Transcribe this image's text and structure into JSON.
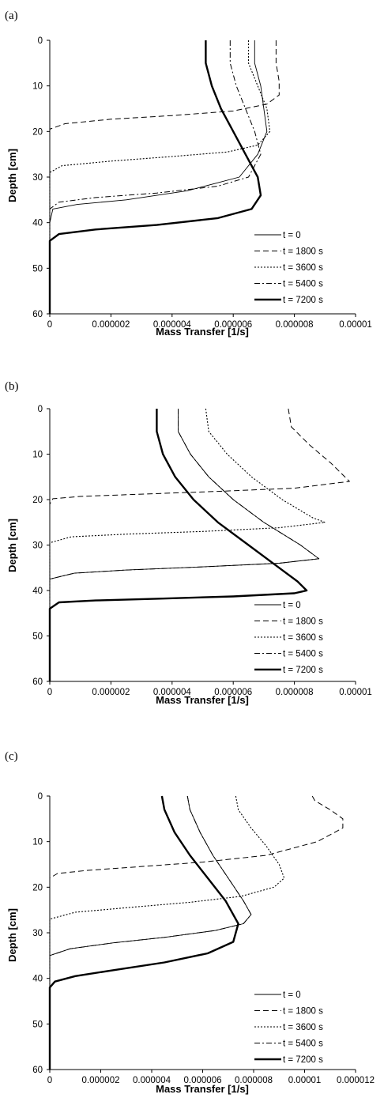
{
  "chart_data": [
    {
      "type": "line",
      "panel_label": "(a)",
      "xlabel": "Mass Transfer [1/s]",
      "ylabel": "Depth [cm]",
      "xlim": [
        0,
        1e-05
      ],
      "ylim": [
        0,
        60
      ],
      "y_inverted": true,
      "x_tick_values": [
        0,
        2e-06,
        4e-06,
        6e-06,
        8e-06,
        1e-05
      ],
      "x_tick_labels": [
        "0",
        "0.000002",
        "0.000004",
        "0.000006",
        "0.000008",
        "0.00001"
      ],
      "y_tick_values": [
        0,
        10,
        20,
        30,
        40,
        50,
        60
      ],
      "y_tick_labels": [
        "0",
        "10",
        "20",
        "30",
        "40",
        "50",
        "60"
      ],
      "grid": false,
      "legend_position": "bottom-right",
      "series": [
        {
          "name": "t = 0",
          "style": "thin-solid",
          "x": [
            6.7e-06,
            6.7e-06,
            6.9e-06,
            7e-06,
            7.1e-06,
            6.8e-06,
            6.2e-06,
            4.5e-06,
            2.5e-06,
            9e-07,
            1e-07,
            0.0,
            0.0
          ],
          "y": [
            0,
            5,
            10,
            15,
            20,
            25,
            30,
            33,
            35,
            36,
            37,
            40,
            60
          ]
        },
        {
          "name": "t = 1800 s",
          "style": "dashed",
          "x": [
            7.4e-06,
            7.4e-06,
            7.5e-06,
            7.5e-06,
            7.1e-06,
            6e-06,
            4e-06,
            2e-06,
            5e-07,
            0.0,
            0.0
          ],
          "y": [
            0,
            5,
            9,
            12,
            14,
            15.5,
            16.5,
            17.3,
            18.3,
            19.5,
            60
          ]
        },
        {
          "name": "t = 3600 s",
          "style": "dotted",
          "x": [
            6.5e-06,
            6.5e-06,
            6.8e-06,
            7.1e-06,
            7.2e-06,
            6.8e-06,
            5.8e-06,
            4e-06,
            2e-06,
            4e-07,
            0.0,
            0.0
          ],
          "y": [
            0,
            5,
            10,
            15,
            20,
            23,
            24.5,
            25.5,
            26.5,
            27.5,
            29,
            60
          ]
        },
        {
          "name": "t = 5400 s",
          "style": "dash-dot",
          "x": [
            5.9e-06,
            5.9e-06,
            6.1e-06,
            6.4e-06,
            6.7e-06,
            6.9e-06,
            6.5e-06,
            5.5e-06,
            3.5e-06,
            1.5e-06,
            3e-07,
            0.0,
            0.0
          ],
          "y": [
            0,
            5,
            10,
            15,
            20,
            25,
            30,
            32,
            33.5,
            34.5,
            35.5,
            37,
            60
          ]
        },
        {
          "name": "t = 7200 s",
          "style": "thick-solid",
          "x": [
            5.1e-06,
            5.1e-06,
            5.3e-06,
            5.6e-06,
            6e-06,
            6.4e-06,
            6.8e-06,
            6.9e-06,
            6.6e-06,
            5.5e-06,
            3.5e-06,
            1.5e-06,
            3e-07,
            0.0,
            0.0
          ],
          "y": [
            0,
            5,
            10,
            15,
            20,
            25,
            30,
            34,
            37,
            39,
            40.5,
            41.5,
            42.5,
            44,
            60
          ]
        }
      ]
    },
    {
      "type": "line",
      "panel_label": "(b)",
      "xlabel": "Mass Transfer [1/s]",
      "ylabel": "Depth [cm]",
      "xlim": [
        0,
        1e-05
      ],
      "ylim": [
        0,
        60
      ],
      "y_inverted": true,
      "x_tick_values": [
        0,
        2e-06,
        4e-06,
        6e-06,
        8e-06,
        1e-05
      ],
      "x_tick_labels": [
        "0",
        "0.000002",
        "0.000004",
        "0.000006",
        "0.000008",
        "0.00001"
      ],
      "y_tick_values": [
        0,
        10,
        20,
        30,
        40,
        50,
        60
      ],
      "y_tick_labels": [
        "0",
        "10",
        "20",
        "30",
        "40",
        "50",
        "60"
      ],
      "grid": false,
      "legend_position": "bottom-right",
      "series": [
        {
          "name": "t = 0",
          "style": "thin-solid",
          "x": [
            4.2e-06,
            4.2e-06,
            4.6e-06,
            5.2e-06,
            6e-06,
            7e-06,
            8.2e-06,
            8.8e-06,
            7.5e-06,
            5e-06,
            2.5e-06,
            8e-07,
            0.0,
            0.0
          ],
          "y": [
            0,
            5,
            10,
            15,
            20,
            25,
            30,
            33,
            34,
            34.8,
            35.5,
            36.2,
            37.5,
            60
          ]
        },
        {
          "name": "t = 1800 s",
          "style": "dashed",
          "x": [
            7.8e-06,
            7.9e-06,
            8.5e-06,
            9.2e-06,
            9.8e-06,
            8e-06,
            5.5e-06,
            3e-06,
            1e-06,
            1e-07,
            0.0,
            0.0
          ],
          "y": [
            0,
            4,
            8,
            12,
            16,
            17.5,
            18.2,
            18.8,
            19.3,
            19.8,
            21,
            60
          ]
        },
        {
          "name": "t = 3600 s",
          "style": "dotted",
          "x": [
            5.1e-06,
            5.2e-06,
            5.8e-06,
            6.6e-06,
            7.6e-06,
            8.6e-06,
            9e-06,
            7.5e-06,
            5e-06,
            2.5e-06,
            7e-07,
            0.0,
            0.0
          ],
          "y": [
            0,
            5,
            10,
            15,
            20,
            24,
            25,
            26.2,
            27,
            27.6,
            28.2,
            29.5,
            60
          ]
        },
        {
          "name": "t = 5400 s",
          "style": "dash-dot",
          "x": [
            4.2e-06,
            4.2e-06,
            4.6e-06,
            5.2e-06,
            6e-06,
            7e-06,
            8.2e-06,
            8.8e-06,
            7.5e-06,
            5e-06,
            2.5e-06,
            8e-07,
            0.0,
            0.0
          ],
          "y": [
            0,
            5,
            10,
            15,
            20,
            25,
            30,
            33,
            34,
            34.8,
            35.5,
            36.2,
            37.5,
            60
          ]
        },
        {
          "name": "t = 7200 s",
          "style": "thick-solid",
          "x": [
            3.5e-06,
            3.5e-06,
            3.7e-06,
            4.1e-06,
            4.7e-06,
            5.5e-06,
            6.5e-06,
            7.5e-06,
            8.1e-06,
            8.4e-06,
            8e-06,
            6e-06,
            3.5e-06,
            1.5e-06,
            3e-07,
            0.0,
            0.0
          ],
          "y": [
            0,
            5,
            10,
            15,
            20,
            25,
            30,
            35,
            38,
            40,
            40.6,
            41.3,
            41.8,
            42.2,
            42.6,
            44,
            60
          ]
        }
      ]
    },
    {
      "type": "line",
      "panel_label": "(c)",
      "xlabel": "Mass Transfer [1/s]",
      "ylabel": "Depth [cm]",
      "xlim": [
        0,
        1.2e-05
      ],
      "ylim": [
        0,
        60
      ],
      "y_inverted": true,
      "x_tick_values": [
        0,
        2e-06,
        4e-06,
        6e-06,
        8e-06,
        1e-05,
        1.2e-05
      ],
      "x_tick_labels": [
        "0",
        "0.000002",
        "0.000004",
        "0.000006",
        "0.000008",
        "0.00001",
        "0.000012"
      ],
      "y_tick_values": [
        0,
        10,
        20,
        30,
        40,
        50,
        60
      ],
      "y_tick_labels": [
        "0",
        "10",
        "20",
        "30",
        "40",
        "50",
        "60"
      ],
      "grid": false,
      "legend_position": "bottom-right",
      "series": [
        {
          "name": "t = 0",
          "style": "thin-solid",
          "x": [
            5.4e-06,
            5.5e-06,
            5.9e-06,
            6.4e-06,
            7e-06,
            7.6e-06,
            7.9e-06,
            7.6e-06,
            6.5e-06,
            4.5e-06,
            2.5e-06,
            8e-07,
            0.0,
            0.0
          ],
          "y": [
            0,
            3,
            8,
            13,
            18,
            23,
            26,
            28,
            29.5,
            31,
            32.2,
            33.5,
            35,
            60
          ]
        },
        {
          "name": "t = 1800 s",
          "style": "dashed",
          "x": [
            1.03e-05,
            1.04e-05,
            1.1e-05,
            1.15e-05,
            1.15e-05,
            1.05e-05,
            8.5e-06,
            6e-06,
            3.5e-06,
            1.5e-06,
            3e-07,
            0.0,
            0.0
          ],
          "y": [
            0,
            1,
            3,
            5,
            7,
            10,
            13,
            14.5,
            15.5,
            16.3,
            17,
            18,
            60
          ]
        },
        {
          "name": "t = 3600 s",
          "style": "dotted",
          "x": [
            7.3e-06,
            7.4e-06,
            7.9e-06,
            8.5e-06,
            9e-06,
            9.2e-06,
            8.8e-06,
            7.5e-06,
            5.5e-06,
            3e-06,
            1e-06,
            0.0,
            0.0
          ],
          "y": [
            0,
            3,
            7,
            11,
            15,
            18,
            20,
            22,
            23.3,
            24.5,
            25.5,
            27,
            60
          ]
        },
        {
          "name": "t = 5400 s",
          "style": "dash-dot",
          "x": [
            5.4e-06,
            5.5e-06,
            5.9e-06,
            6.4e-06,
            7e-06,
            7.6e-06,
            7.9e-06,
            7.6e-06,
            6.5e-06,
            4.5e-06,
            2.5e-06,
            8e-07,
            0.0,
            0.0
          ],
          "y": [
            0,
            3,
            8,
            13,
            18,
            23,
            26,
            28,
            29.5,
            31,
            32.2,
            33.5,
            35,
            60
          ]
        },
        {
          "name": "t = 7200 s",
          "style": "thick-solid",
          "x": [
            4.4e-06,
            4.5e-06,
            4.9e-06,
            5.5e-06,
            6.2e-06,
            6.9e-06,
            7.4e-06,
            7.2e-06,
            6.2e-06,
            4.5e-06,
            2.5e-06,
            1e-06,
            2e-07,
            0.0,
            0.0
          ],
          "y": [
            0,
            3,
            8,
            13,
            18,
            23,
            28,
            32,
            34.5,
            36.5,
            38.2,
            39.5,
            40.7,
            42,
            60
          ]
        }
      ]
    }
  ]
}
